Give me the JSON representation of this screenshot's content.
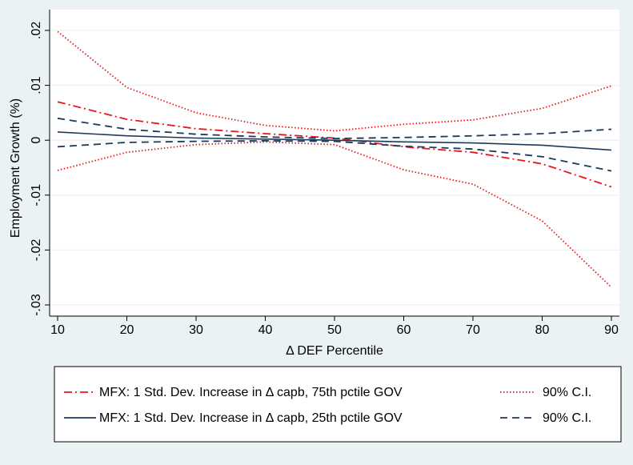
{
  "chart_data": {
    "type": "line",
    "xlabel": "Δ DEF Percentile",
    "ylabel": "Employment Growth (%)",
    "xlim": [
      10,
      90
    ],
    "ylim": [
      -0.03,
      0.02
    ],
    "x_ticks": [
      10,
      20,
      30,
      40,
      50,
      60,
      70,
      80,
      90
    ],
    "y_ticks": [
      -0.03,
      -0.02,
      -0.01,
      0,
      0.01,
      0.02
    ],
    "y_tick_labels": [
      "-.03",
      "-.02",
      "-.01",
      "0",
      ".01",
      ".02"
    ],
    "grid": "horizontal",
    "legend_position": "bottom",
    "x": [
      10,
      20,
      30,
      40,
      50,
      60,
      70,
      80,
      90
    ],
    "series": [
      {
        "name": "MFX: 1 Std. Dev. Increase in Δ capb, 75th pctile GOV",
        "color": "#e8161b",
        "style": "dashdot",
        "values": [
          0.007,
          0.0038,
          0.0021,
          0.0012,
          0.0004,
          -0.0012,
          -0.0022,
          -0.0043,
          -0.0085
        ]
      },
      {
        "name": "90% C.I.",
        "color": "#e8161b",
        "style": "dotted",
        "values": [
          0.0198,
          0.0096,
          0.005,
          0.0027,
          0.0017,
          0.0029,
          0.0037,
          0.0058,
          0.0099
        ]
      },
      {
        "name": "",
        "color": "#e8161b",
        "style": "dotted",
        "values": [
          -0.0055,
          -0.0022,
          -0.0008,
          -0.0003,
          -0.0008,
          -0.0054,
          -0.008,
          -0.0147,
          -0.0268
        ]
      },
      {
        "name": "MFX: 1 Std. Dev. Increase in Δ capb, 25th pctile GOV",
        "color": "#1b3a5c",
        "style": "solid",
        "values": [
          0.0015,
          0.0008,
          0.0004,
          0.0002,
          0.0,
          -0.0003,
          -0.0005,
          -0.0009,
          -0.0018
        ]
      },
      {
        "name": "90% C.I.",
        "color": "#1b3a5c",
        "style": "dashed",
        "values": [
          0.004,
          0.002,
          0.0011,
          0.0006,
          0.0003,
          0.0005,
          0.0008,
          0.0012,
          0.002
        ]
      },
      {
        "name": "",
        "color": "#1b3a5c",
        "style": "dashed",
        "values": [
          -0.0012,
          -0.0004,
          -0.0002,
          -0.0001,
          -0.0002,
          -0.0011,
          -0.0016,
          -0.003,
          -0.0056
        ]
      }
    ],
    "legend": [
      {
        "label": "MFX: 1 Std. Dev. Increase in Δ capb, 75th pctile GOV",
        "series": 0
      },
      {
        "label": "90% C.I.",
        "series": 1
      },
      {
        "label": "MFX: 1 Std. Dev. Increase in Δ capb, 25th pctile GOV",
        "series": 3
      },
      {
        "label": "90% C.I.",
        "series": 4
      }
    ]
  }
}
